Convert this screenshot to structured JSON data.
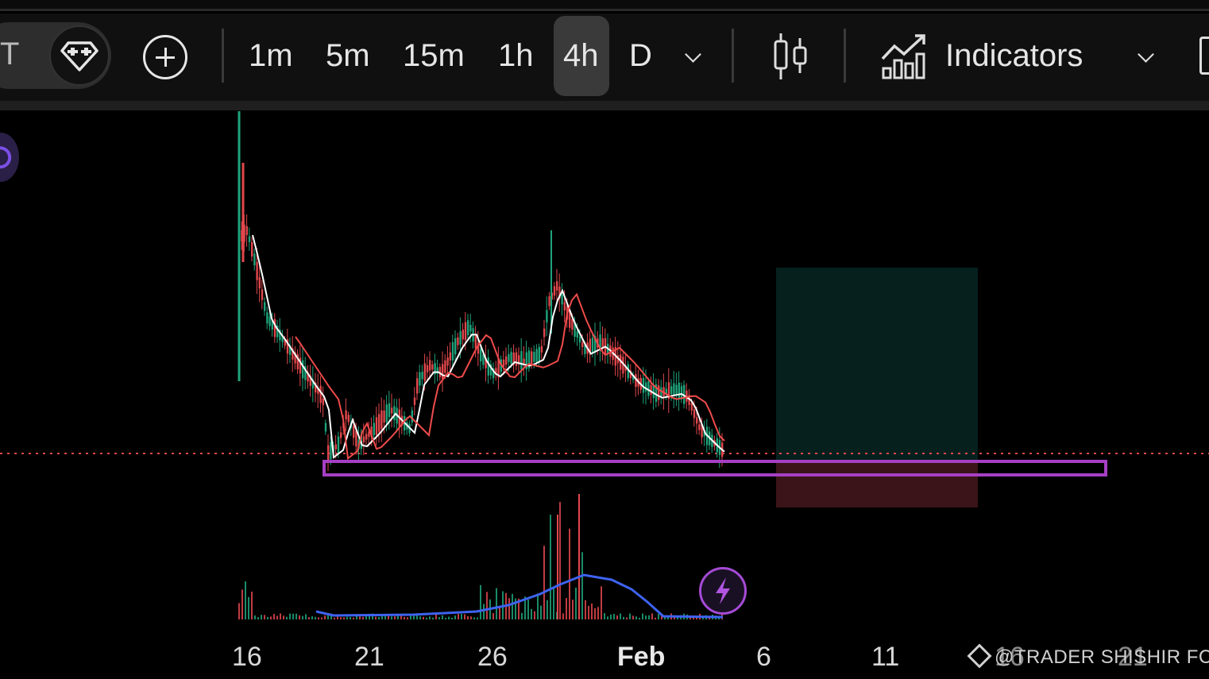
{
  "toolbar": {
    "partial_left_label": "T",
    "timeframes": [
      "1m",
      "5m",
      "15m",
      "1h",
      "4h",
      "D"
    ],
    "active_timeframe": "4h",
    "indicators_label": "Indicators"
  },
  "chart_data": {
    "type": "candlestick",
    "x_tick_labels": [
      "16",
      "21",
      "26",
      "Feb",
      "6",
      "11",
      "16",
      "21"
    ],
    "series": [
      {
        "name": "",
        "type": "candles"
      },
      {
        "name": "",
        "type": "line",
        "color": "#ffffff"
      },
      {
        "name": "",
        "type": "line",
        "color": "#ef4b4b"
      },
      {
        "name": "",
        "type": "volume-bars"
      },
      {
        "name": "",
        "type": "volume-line",
        "color": "#3e63f0"
      }
    ],
    "annotations": [
      "support-zone-rectangle",
      "risk-reward-box",
      "last-price-dotted-line"
    ],
    "colors": {
      "up": "#1fa37a",
      "down": "#e0474c",
      "zone": "#a63fc4",
      "profit": "#06201e",
      "loss": "#3a1418"
    },
    "grid": false
  },
  "watermark": "@TRADER SHISHIR FCS"
}
